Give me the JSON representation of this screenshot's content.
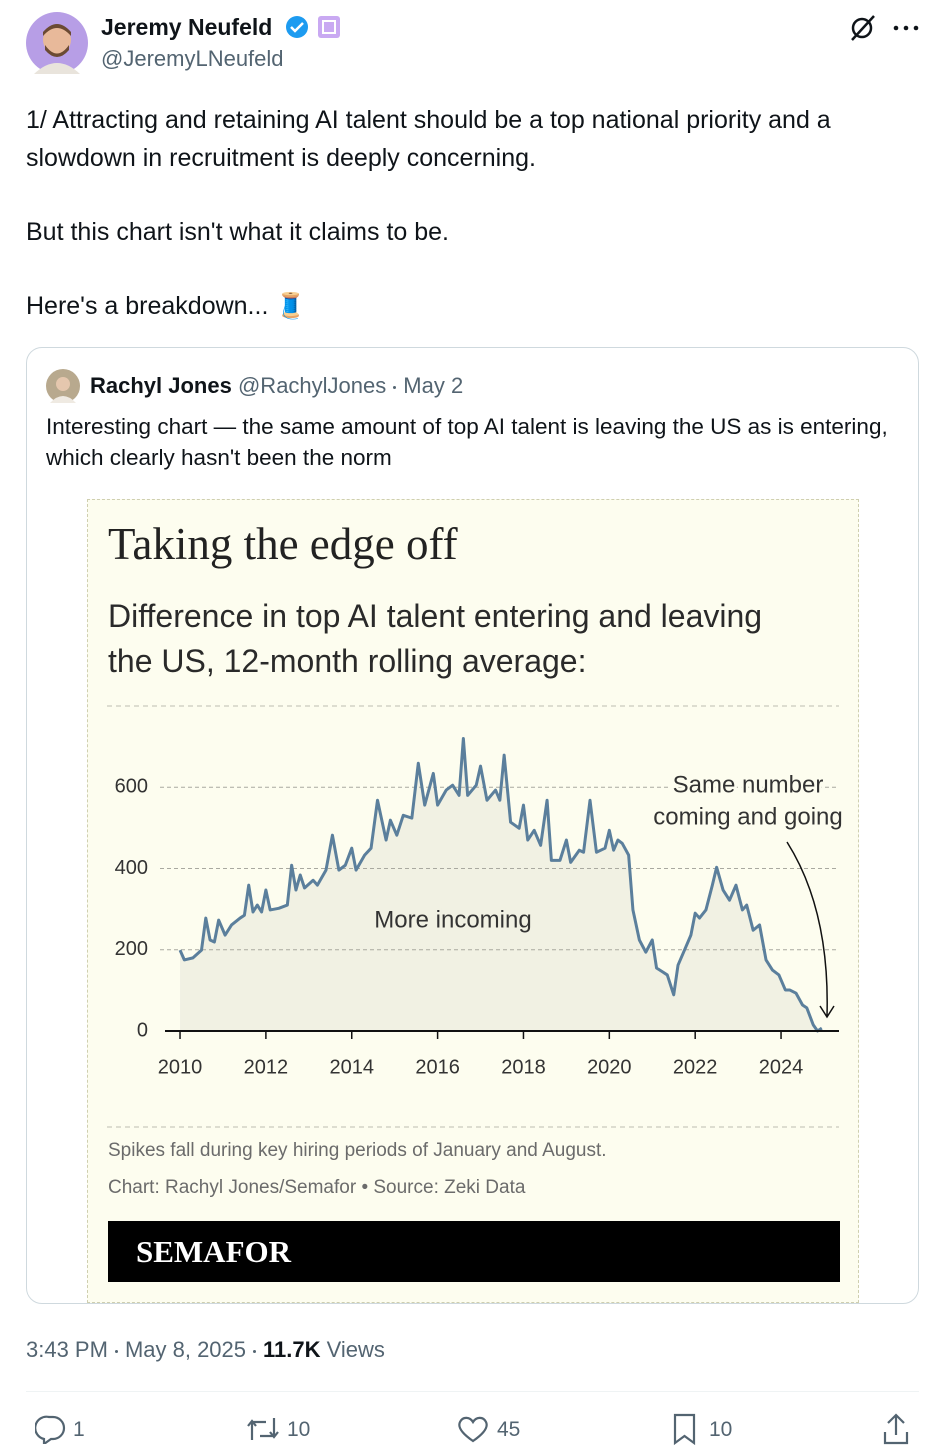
{
  "tweet": {
    "author": {
      "name": "Jeremy Neufeld",
      "handle": "@JeremyLNeufeld"
    },
    "text": [
      "1/ Attracting and retaining AI talent should be a top national priority and a slowdown in recruitment is deeply concerning.",
      "But this chart isn't what it claims to be.",
      "Here's a breakdown... 🧵"
    ],
    "quote": {
      "author": {
        "name": "Rachyl Jones",
        "handle": "@RachylJones"
      },
      "date": "May 2",
      "text": "Interesting chart — the same amount of top AI talent is leaving the US as is entering, which clearly hasn't been the norm"
    },
    "time": "3:43 PM",
    "date": "May 8, 2025",
    "views": "11.7K",
    "views_label": "Views",
    "stats": {
      "replies": 1,
      "reposts": 10,
      "likes": 45,
      "bookmarks": 10
    }
  },
  "chart_data": {
    "type": "line",
    "title": "Taking the edge off",
    "subtitle": "Difference in top AI talent entering and leaving the US, 12-month rolling average:",
    "x": [
      2010.0,
      2010.1,
      2010.3,
      2010.5,
      2010.6,
      2010.7,
      2010.8,
      2010.9,
      2011.05,
      2011.2,
      2011.4,
      2011.5,
      2011.6,
      2011.7,
      2011.8,
      2011.9,
      2012.0,
      2012.1,
      2012.3,
      2012.5,
      2012.6,
      2012.7,
      2012.8,
      2012.9,
      2013.1,
      2013.2,
      2013.4,
      2013.55,
      2013.7,
      2013.85,
      2014.0,
      2014.1,
      2014.3,
      2014.45,
      2014.6,
      2014.8,
      2014.9,
      2015.05,
      2015.2,
      2015.4,
      2015.55,
      2015.7,
      2015.9,
      2016.0,
      2016.2,
      2016.35,
      2016.5,
      2016.6,
      2016.7,
      2016.9,
      2017.0,
      2017.15,
      2017.35,
      2017.45,
      2017.55,
      2017.7,
      2017.9,
      2018.0,
      2018.1,
      2018.25,
      2018.4,
      2018.55,
      2018.65,
      2018.85,
      2019.0,
      2019.1,
      2019.3,
      2019.4,
      2019.55,
      2019.7,
      2019.9,
      2020.0,
      2020.1,
      2020.2,
      2020.3,
      2020.45,
      2020.55,
      2020.7,
      2020.85,
      2021.0,
      2021.1,
      2021.25,
      2021.35,
      2021.5,
      2021.6,
      2021.75,
      2021.9,
      2022.0,
      2022.1,
      2022.25,
      2022.4,
      2022.5,
      2022.65,
      2022.8,
      2022.95,
      2023.1,
      2023.2,
      2023.35,
      2023.5,
      2023.65,
      2023.8,
      2023.95,
      2024.1,
      2024.2,
      2024.35,
      2024.5,
      2024.6,
      2024.75,
      2024.85,
      2024.95
    ],
    "values": [
      199,
      175,
      180,
      199,
      278,
      224,
      219,
      273,
      236,
      261,
      278,
      285,
      359,
      293,
      310,
      293,
      347,
      298,
      302,
      310,
      408,
      347,
      384,
      352,
      371,
      359,
      396,
      482,
      396,
      408,
      450,
      396,
      433,
      450,
      568,
      470,
      519,
      482,
      531,
      524,
      659,
      556,
      634,
      556,
      593,
      605,
      580,
      720,
      580,
      605,
      652,
      568,
      593,
      568,
      679,
      514,
      499,
      556,
      470,
      494,
      457,
      568,
      420,
      420,
      470,
      415,
      445,
      440,
      568,
      440,
      450,
      494,
      445,
      470,
      462,
      433,
      298,
      224,
      194,
      224,
      155,
      145,
      138,
      89,
      162,
      199,
      236,
      290,
      278,
      298,
      359,
      403,
      347,
      322,
      359,
      298,
      310,
      248,
      261,
      175,
      150,
      138,
      101,
      101,
      93,
      64,
      57,
      15,
      0,
      7
    ],
    "color": "#5b7f9c",
    "area_color": "#f1f1e3",
    "background": "#fdfdef",
    "xlim": [
      2009.65,
      2025.35
    ],
    "xticks": [
      2010,
      2012,
      2014,
      2016,
      2018,
      2020,
      2022,
      2024
    ],
    "ylim": [
      0,
      800
    ],
    "yticks": [
      0,
      200,
      400,
      600
    ],
    "grid": true,
    "annotation_incoming": "More incoming",
    "annotation_same": [
      "Same number",
      "coming and going"
    ],
    "note": "Spikes fall during key hiring periods of January and August.",
    "credit": "Chart: Rachyl Jones/Semafor • Source: Zeki Data",
    "brand": "SEMAFOR"
  }
}
